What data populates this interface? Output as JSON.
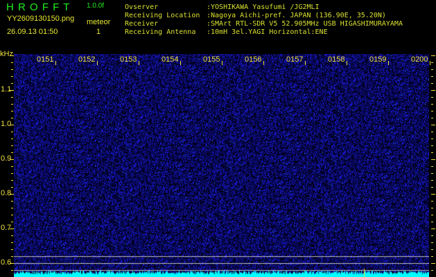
{
  "header": {
    "app_title": "H R O F F T",
    "version": "1.0.0f",
    "filename": "YY2609130150.png",
    "datetime": "26.09.13 01:50",
    "meteor_label": "meteor",
    "meteor_count": "1"
  },
  "station": [
    {
      "label": "Ovserver",
      "value": ":YOSHIKAWA Yasufumi /JG2MLI"
    },
    {
      "label": "Receiving Location",
      "value": ":Nagoya Aichi-pref. JAPAN (136.90E, 35.20N)"
    },
    {
      "label": "Receiver",
      "value": ":SMArt RTL-SDR V5 52.905MHz USB HIGASHIMURAYAMA"
    },
    {
      "label": "Receiving Antenna",
      "value": ":10mH 3el.YAGI Horizontal:ENE"
    }
  ],
  "axis": {
    "unit": "kHz",
    "y_labels": [
      "1.1",
      "1.0",
      "0.9",
      "0.8",
      "0.7",
      "0.6"
    ],
    "y_values": [
      1.1,
      1.0,
      0.9,
      0.8,
      0.7,
      0.6
    ],
    "y_range": [
      0.56,
      1.204
    ],
    "time_labels": [
      "0151",
      "0152",
      "0153",
      "0154",
      "0155",
      "0156",
      "0157",
      "0158",
      "0159",
      "0200"
    ]
  },
  "colors": {
    "noise": "#1a1aff",
    "bottom_bar": "#00ffff",
    "axis": "#f0e040",
    "title": "#22ee22",
    "grid_line": "#c0c0c0"
  }
}
